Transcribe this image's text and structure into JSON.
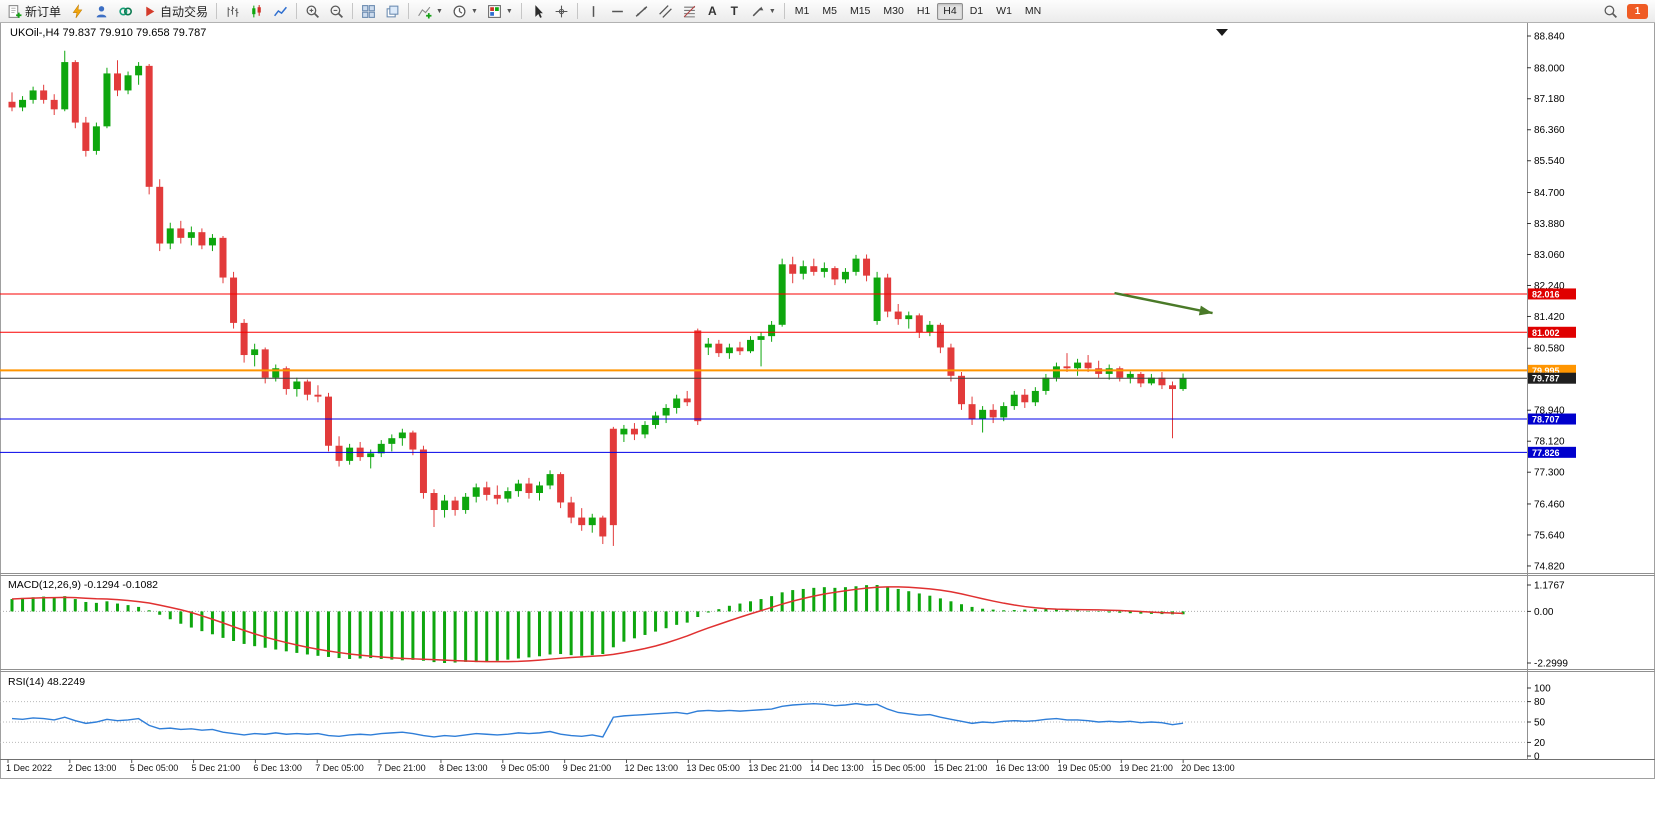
{
  "toolbar": {
    "new_order_label": "新订单",
    "auto_trading_label": "自动交易",
    "text_tool_label": "A",
    "label_tool_label": "T",
    "notification_count": "1",
    "notification_color": "#ef5b24",
    "timeframes": [
      {
        "label": "M1",
        "active": false
      },
      {
        "label": "M5",
        "active": false
      },
      {
        "label": "M15",
        "active": false
      },
      {
        "label": "M30",
        "active": false
      },
      {
        "label": "H1",
        "active": false
      },
      {
        "label": "H4",
        "active": true
      },
      {
        "label": "D1",
        "active": false
      },
      {
        "label": "W1",
        "active": false
      },
      {
        "label": "MN",
        "active": false
      }
    ]
  },
  "chart_data": [
    {
      "type": "candlestick",
      "title": "UKOil-,H4 79.837 79.910 79.658 79.787",
      "symbol": "UKOil-",
      "timeframe": "H4",
      "open": "79.837",
      "high": "79.910",
      "low": "79.658",
      "close": "79.787",
      "colors": {
        "bull": "#0ea60e",
        "bear": "#e23b3b"
      },
      "y_ticks": [
        "88.840",
        "88.000",
        "87.180",
        "86.360",
        "85.540",
        "84.700",
        "83.880",
        "83.060",
        "82.240",
        "81.420",
        "80.580",
        "78.940",
        "78.120",
        "77.300",
        "76.460",
        "75.640",
        "74.820"
      ],
      "x_tick_labels": [
        "1 Dec 2022",
        "2 Dec 13:00",
        "5 Dec 05:00",
        "5 Dec 21:00",
        "6 Dec 13:00",
        "7 Dec 05:00",
        "7 Dec 21:00",
        "8 Dec 13:00",
        "9 Dec 05:00",
        "9 Dec 21:00",
        "12 Dec 13:00",
        "13 Dec 05:00",
        "13 Dec 21:00",
        "14 Dec 13:00",
        "15 Dec 05:00",
        "15 Dec 21:00",
        "16 Dec 13:00",
        "19 Dec 05:00",
        "19 Dec 21:00",
        "20 Dec 13:00"
      ],
      "hlines": [
        {
          "price": 82.016,
          "label": "82.016",
          "color": "#fa0000",
          "badge_bg": "#e00000",
          "width": 1
        },
        {
          "price": 81.002,
          "label": "81.002",
          "color": "#fa0000",
          "badge_bg": "#e00000",
          "width": 1
        },
        {
          "price": 79.995,
          "label": "79.995",
          "color": "#ff9500",
          "badge_bg": "#ff9500",
          "width": 2
        },
        {
          "price": 78.707,
          "label": "78.707",
          "color": "#0000e8",
          "badge_bg": "#0000cd",
          "width": 1
        },
        {
          "price": 77.826,
          "label": "77.826",
          "color": "#0000e8",
          "badge_bg": "#0000cd",
          "width": 1
        },
        {
          "price": 79.787,
          "label": "79.787",
          "color": "#3c3c3c",
          "badge_bg": "#1f1f1f",
          "width": 1,
          "kind": "current"
        }
      ],
      "arrow": {
        "x1_bar": 104.5,
        "y1_price": 82.04,
        "x2_bar": 113.8,
        "y2_price": 81.51,
        "color": "#4a7a28"
      },
      "candles": [
        [
          87.1,
          87.35,
          86.85,
          86.95
        ],
        [
          86.95,
          87.25,
          86.85,
          87.15
        ],
        [
          87.15,
          87.5,
          87.05,
          87.4
        ],
        [
          87.4,
          87.55,
          87.05,
          87.15
        ],
        [
          87.15,
          87.3,
          86.75,
          86.9
        ],
        [
          86.9,
          88.45,
          86.85,
          88.15
        ],
        [
          88.15,
          88.2,
          86.4,
          86.55
        ],
        [
          86.55,
          86.7,
          85.65,
          85.8
        ],
        [
          85.8,
          86.55,
          85.7,
          86.45
        ],
        [
          86.45,
          88.0,
          86.4,
          87.85
        ],
        [
          87.85,
          88.2,
          87.25,
          87.4
        ],
        [
          87.4,
          87.9,
          87.3,
          87.8
        ],
        [
          87.8,
          88.15,
          87.55,
          88.05
        ],
        [
          88.05,
          88.1,
          84.65,
          84.85
        ],
        [
          84.85,
          85.05,
          83.15,
          83.35
        ],
        [
          83.35,
          83.9,
          83.2,
          83.75
        ],
        [
          83.75,
          83.95,
          83.35,
          83.5
        ],
        [
          83.5,
          83.8,
          83.3,
          83.65
        ],
        [
          83.65,
          83.75,
          83.2,
          83.3
        ],
        [
          83.3,
          83.6,
          83.15,
          83.5
        ],
        [
          83.5,
          83.55,
          82.3,
          82.45
        ],
        [
          82.45,
          82.6,
          81.1,
          81.25
        ],
        [
          81.25,
          81.35,
          80.2,
          80.4
        ],
        [
          80.4,
          80.7,
          80.1,
          80.55
        ],
        [
          80.55,
          80.6,
          79.65,
          79.8
        ],
        [
          79.8,
          80.15,
          79.7,
          80.05
        ],
        [
          80.05,
          80.1,
          79.35,
          79.5
        ],
        [
          79.5,
          79.8,
          79.3,
          79.7
        ],
        [
          79.7,
          79.75,
          79.2,
          79.35
        ],
        [
          79.35,
          79.6,
          79.15,
          79.3
        ],
        [
          79.3,
          79.4,
          77.85,
          78.0
        ],
        [
          78.0,
          78.25,
          77.45,
          77.6
        ],
        [
          77.6,
          78.05,
          77.5,
          77.95
        ],
        [
          77.95,
          78.1,
          77.6,
          77.7
        ],
        [
          77.7,
          77.9,
          77.4,
          77.8
        ],
        [
          77.8,
          78.15,
          77.7,
          78.05
        ],
        [
          78.05,
          78.3,
          77.85,
          78.2
        ],
        [
          78.2,
          78.45,
          78.0,
          78.35
        ],
        [
          78.35,
          78.4,
          77.75,
          77.9
        ],
        [
          77.9,
          78.0,
          76.6,
          76.75
        ],
        [
          76.75,
          76.85,
          75.85,
          76.3
        ],
        [
          76.3,
          76.7,
          76.1,
          76.55
        ],
        [
          76.55,
          76.65,
          76.15,
          76.3
        ],
        [
          76.3,
          76.75,
          76.2,
          76.65
        ],
        [
          76.65,
          77.0,
          76.5,
          76.9
        ],
        [
          76.9,
          77.05,
          76.55,
          76.7
        ],
        [
          76.7,
          76.95,
          76.45,
          76.6
        ],
        [
          76.6,
          76.9,
          76.5,
          76.8
        ],
        [
          76.8,
          77.1,
          76.65,
          77.0
        ],
        [
          77.0,
          77.15,
          76.6,
          76.75
        ],
        [
          76.75,
          77.05,
          76.55,
          76.95
        ],
        [
          76.95,
          77.35,
          76.85,
          77.25
        ],
        [
          77.25,
          77.3,
          76.35,
          76.5
        ],
        [
          76.5,
          76.65,
          75.95,
          76.1
        ],
        [
          76.1,
          76.35,
          75.75,
          75.9
        ],
        [
          75.9,
          76.2,
          75.7,
          76.1
        ],
        [
          76.1,
          76.15,
          75.4,
          75.6
        ],
        [
          78.45,
          78.5,
          75.35,
          75.9
        ],
        [
          78.3,
          78.55,
          78.1,
          78.45
        ],
        [
          78.45,
          78.6,
          78.15,
          78.3
        ],
        [
          78.3,
          78.65,
          78.2,
          78.55
        ],
        [
          78.55,
          78.9,
          78.45,
          78.8
        ],
        [
          78.8,
          79.1,
          78.6,
          79.0
        ],
        [
          79.0,
          79.35,
          78.85,
          79.25
        ],
        [
          79.25,
          79.45,
          79.05,
          79.15
        ],
        [
          81.05,
          81.1,
          78.55,
          78.65
        ],
        [
          80.6,
          80.85,
          80.4,
          80.7
        ],
        [
          80.7,
          80.8,
          80.35,
          80.45
        ],
        [
          80.45,
          80.7,
          80.3,
          80.6
        ],
        [
          80.6,
          80.75,
          80.4,
          80.5
        ],
        [
          80.5,
          80.9,
          80.45,
          80.8
        ],
        [
          80.8,
          81.0,
          80.1,
          80.9
        ],
        [
          80.9,
          81.3,
          80.75,
          81.2
        ],
        [
          81.2,
          82.95,
          81.15,
          82.8
        ],
        [
          82.8,
          83.0,
          82.3,
          82.55
        ],
        [
          82.55,
          82.9,
          82.4,
          82.75
        ],
        [
          82.75,
          82.95,
          82.5,
          82.6
        ],
        [
          82.6,
          82.85,
          82.45,
          82.7
        ],
        [
          82.7,
          82.75,
          82.25,
          82.4
        ],
        [
          82.4,
          82.7,
          82.3,
          82.6
        ],
        [
          82.6,
          83.05,
          82.5,
          82.95
        ],
        [
          82.95,
          83.06,
          82.35,
          82.5
        ],
        [
          81.3,
          82.6,
          81.2,
          82.45
        ],
        [
          82.45,
          82.55,
          81.4,
          81.55
        ],
        [
          81.55,
          81.75,
          81.2,
          81.35
        ],
        [
          81.35,
          81.55,
          81.1,
          81.45
        ],
        [
          81.45,
          81.5,
          80.85,
          81.0
        ],
        [
          81.0,
          81.3,
          80.9,
          81.2
        ],
        [
          81.2,
          81.25,
          80.45,
          80.6
        ],
        [
          80.6,
          80.7,
          79.7,
          79.85
        ],
        [
          79.85,
          79.95,
          78.95,
          79.1
        ],
        [
          79.1,
          79.3,
          78.55,
          78.7
        ],
        [
          78.7,
          79.05,
          78.35,
          78.95
        ],
        [
          78.95,
          79.1,
          78.6,
          78.75
        ],
        [
          78.75,
          79.15,
          78.65,
          79.05
        ],
        [
          79.05,
          79.45,
          78.95,
          79.35
        ],
        [
          79.35,
          79.5,
          79.0,
          79.15
        ],
        [
          79.15,
          79.55,
          79.05,
          79.45
        ],
        [
          79.45,
          79.9,
          79.35,
          79.8
        ],
        [
          79.8,
          80.2,
          79.7,
          80.1
        ],
        [
          80.1,
          80.45,
          79.95,
          80.05
        ],
        [
          80.05,
          80.3,
          79.85,
          80.2
        ],
        [
          80.2,
          80.4,
          79.95,
          80.05
        ],
        [
          80.05,
          80.25,
          79.8,
          79.9
        ],
        [
          79.9,
          80.15,
          79.75,
          80.05
        ],
        [
          80.05,
          80.1,
          79.7,
          79.8
        ],
        [
          79.8,
          80.0,
          79.65,
          79.9
        ],
        [
          79.9,
          79.95,
          79.55,
          79.65
        ],
        [
          79.65,
          79.9,
          79.6,
          79.8
        ],
        [
          79.8,
          79.95,
          79.5,
          79.6
        ],
        [
          79.6,
          79.7,
          78.2,
          79.5
        ],
        [
          79.5,
          79.91,
          79.45,
          79.787
        ]
      ]
    },
    {
      "type": "macd",
      "label": "MACD(12,26,9) -0.1294 -0.1082",
      "current_macd": "-0.1294",
      "current_signal": "-0.1082",
      "histogram_color": "#0ea60e",
      "signal_color": "#e03131",
      "ylim": [
        -2.2999,
        1.1767
      ],
      "y_ticks": [
        "1.1767",
        "0.00",
        "-2.2999"
      ],
      "values": [
        0.55,
        0.6,
        0.63,
        0.66,
        0.62,
        0.68,
        0.55,
        0.42,
        0.38,
        0.45,
        0.35,
        0.28,
        0.2,
        0.05,
        -0.15,
        -0.35,
        -0.55,
        -0.72,
        -0.88,
        -1.02,
        -1.18,
        -1.32,
        -1.45,
        -1.55,
        -1.62,
        -1.7,
        -1.78,
        -1.85,
        -1.92,
        -1.98,
        -2.03,
        -2.08,
        -2.12,
        -2.1,
        -2.08,
        -2.12,
        -2.15,
        -2.18,
        -2.16,
        -2.2,
        -2.26,
        -2.3,
        -2.28,
        -2.25,
        -2.26,
        -2.24,
        -2.2,
        -2.15,
        -2.1,
        -2.05,
        -2.0,
        -1.92,
        -1.9,
        -1.95,
        -1.98,
        -1.95,
        -1.9,
        -1.6,
        -1.35,
        -1.2,
        -1.05,
        -0.9,
        -0.75,
        -0.6,
        -0.5,
        -0.25,
        -0.05,
        0.1,
        0.25,
        0.35,
        0.45,
        0.55,
        0.68,
        0.85,
        0.95,
        1.0,
        1.05,
        1.08,
        1.05,
        1.08,
        1.12,
        1.17,
        1.1767,
        1.1,
        1.0,
        0.9,
        0.8,
        0.7,
        0.58,
        0.45,
        0.32,
        0.2,
        0.12,
        0.08,
        0.05,
        0.06,
        0.08,
        0.1,
        0.12,
        0.1,
        0.08,
        0.05,
        0.02,
        -0.02,
        -0.05,
        -0.06,
        -0.08,
        -0.1,
        -0.11,
        -0.12,
        -0.13,
        -0.1294
      ]
    },
    {
      "type": "line",
      "label": "RSI(14) 48.2249",
      "current_value": "48.2249",
      "line_color": "#2f7ed8",
      "ylim": [
        0,
        100
      ],
      "levels": [
        80,
        50,
        20
      ],
      "y_ticks": [
        "100",
        "80",
        "50",
        "20",
        "0"
      ],
      "values": [
        55,
        54,
        56,
        55,
        53,
        57,
        52,
        48,
        50,
        54,
        52,
        53,
        55,
        45,
        40,
        41,
        39,
        40,
        38,
        39,
        35,
        33,
        31,
        33,
        32,
        34,
        32,
        33,
        32,
        33,
        30,
        29,
        31,
        32,
        31,
        33,
        34,
        35,
        33,
        30,
        28,
        30,
        29,
        31,
        33,
        32,
        31,
        32,
        34,
        33,
        34,
        36,
        32,
        30,
        29,
        31,
        28,
        57,
        59,
        60,
        61,
        62,
        63,
        64,
        62,
        66,
        67,
        66,
        67,
        66,
        67,
        68,
        69,
        73,
        75,
        76,
        77,
        76,
        74,
        75,
        77,
        75,
        76,
        69,
        64,
        62,
        60,
        61,
        57,
        54,
        51,
        48,
        50,
        49,
        51,
        52,
        51,
        52,
        54,
        55,
        53,
        53,
        52,
        50,
        51,
        50,
        51,
        49,
        50,
        49,
        46,
        48.2249
      ]
    }
  ]
}
